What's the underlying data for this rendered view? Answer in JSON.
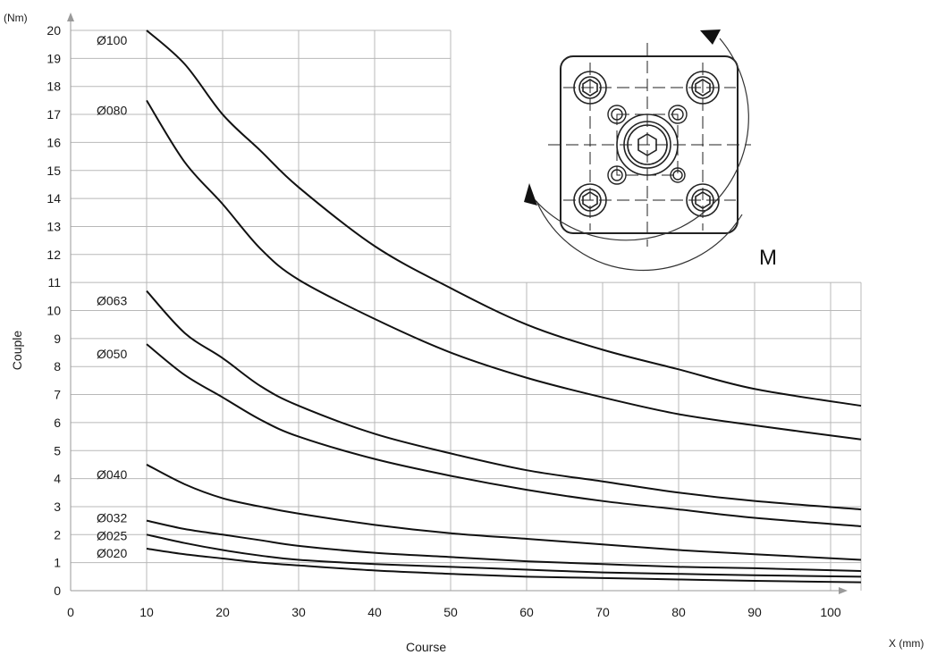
{
  "chart_data": {
    "type": "line",
    "title": "",
    "xlabel": "Course",
    "ylabel": "Couple",
    "x_unit": "X (mm)",
    "y_unit": "(Nm)",
    "xlim": [
      0,
      104
    ],
    "ylim": [
      0,
      20
    ],
    "x_ticks": [
      "0",
      "10",
      "20",
      "30",
      "40",
      "50",
      "60",
      "70",
      "80",
      "90",
      "100"
    ],
    "y_ticks": [
      "0",
      "1",
      "2",
      "3",
      "4",
      "5",
      "6",
      "7",
      "8",
      "9",
      "10",
      "11",
      "12",
      "13",
      "14",
      "15",
      "16",
      "17",
      "18",
      "19",
      "20"
    ],
    "grid": true,
    "inset_label": "M",
    "series": [
      {
        "name": "Ø100",
        "x": [
          10,
          15,
          20,
          25,
          30,
          40,
          50,
          60,
          70,
          80,
          90,
          104
        ],
        "y": [
          20.0,
          18.8,
          17.0,
          15.7,
          14.4,
          12.3,
          10.8,
          9.5,
          8.6,
          7.9,
          7.2,
          6.6
        ]
      },
      {
        "name": "Ø080",
        "x": [
          10,
          15,
          20,
          25,
          30,
          40,
          50,
          60,
          70,
          80,
          90,
          104
        ],
        "y": [
          17.5,
          15.3,
          13.8,
          12.2,
          11.1,
          9.7,
          8.5,
          7.6,
          6.9,
          6.3,
          5.9,
          5.4
        ]
      },
      {
        "name": "Ø063",
        "x": [
          10,
          15,
          20,
          25,
          30,
          40,
          50,
          60,
          70,
          80,
          90,
          104
        ],
        "y": [
          10.7,
          9.2,
          8.3,
          7.3,
          6.6,
          5.6,
          4.9,
          4.3,
          3.9,
          3.5,
          3.2,
          2.9
        ]
      },
      {
        "name": "Ø050",
        "x": [
          10,
          15,
          20,
          25,
          30,
          40,
          50,
          60,
          70,
          80,
          90,
          104
        ],
        "y": [
          8.8,
          7.7,
          6.9,
          6.1,
          5.5,
          4.7,
          4.1,
          3.6,
          3.2,
          2.9,
          2.6,
          2.3
        ]
      },
      {
        "name": "Ø040",
        "x": [
          10,
          15,
          20,
          25,
          30,
          40,
          50,
          60,
          70,
          80,
          90,
          104
        ],
        "y": [
          4.5,
          3.8,
          3.3,
          3.0,
          2.75,
          2.35,
          2.05,
          1.85,
          1.65,
          1.45,
          1.3,
          1.1
        ]
      },
      {
        "name": "Ø032",
        "x": [
          10,
          15,
          20,
          25,
          30,
          40,
          50,
          60,
          70,
          80,
          90,
          104
        ],
        "y": [
          2.5,
          2.2,
          2.0,
          1.8,
          1.6,
          1.35,
          1.2,
          1.05,
          0.95,
          0.85,
          0.8,
          0.7
        ]
      },
      {
        "name": "Ø025",
        "x": [
          10,
          15,
          20,
          25,
          30,
          40,
          50,
          60,
          70,
          80,
          90,
          104
        ],
        "y": [
          2.0,
          1.7,
          1.45,
          1.25,
          1.1,
          0.95,
          0.85,
          0.75,
          0.65,
          0.6,
          0.55,
          0.5
        ]
      },
      {
        "name": "Ø020",
        "x": [
          10,
          15,
          20,
          25,
          30,
          40,
          50,
          60,
          70,
          80,
          90,
          104
        ],
        "y": [
          1.5,
          1.3,
          1.15,
          1.0,
          0.9,
          0.72,
          0.6,
          0.5,
          0.45,
          0.4,
          0.35,
          0.3
        ]
      }
    ]
  }
}
